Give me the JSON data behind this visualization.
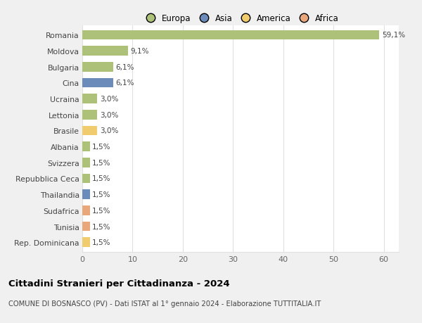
{
  "countries": [
    "Romania",
    "Moldova",
    "Bulgaria",
    "Cina",
    "Ucraina",
    "Lettonia",
    "Brasile",
    "Albania",
    "Svizzera",
    "Repubblica Ceca",
    "Thailandia",
    "Sudafrica",
    "Tunisia",
    "Rep. Dominicana"
  ],
  "values": [
    59.1,
    9.1,
    6.1,
    6.1,
    3.0,
    3.0,
    3.0,
    1.5,
    1.5,
    1.5,
    1.5,
    1.5,
    1.5,
    1.5
  ],
  "labels": [
    "59,1%",
    "9,1%",
    "6,1%",
    "6,1%",
    "3,0%",
    "3,0%",
    "3,0%",
    "1,5%",
    "1,5%",
    "1,5%",
    "1,5%",
    "1,5%",
    "1,5%",
    "1,5%"
  ],
  "colors": [
    "#adc178",
    "#adc178",
    "#adc178",
    "#6b8cba",
    "#adc178",
    "#adc178",
    "#f0cc6e",
    "#adc178",
    "#adc178",
    "#adc178",
    "#6b8cba",
    "#e8a87c",
    "#e8a87c",
    "#f0cc6e"
  ],
  "legend_labels": [
    "Europa",
    "Asia",
    "America",
    "Africa"
  ],
  "legend_colors": [
    "#adc178",
    "#6b8cba",
    "#f0cc6e",
    "#e8a87c"
  ],
  "title": "Cittadini Stranieri per Cittadinanza - 2024",
  "subtitle": "COMUNE DI BOSNASCO (PV) - Dati ISTAT al 1° gennaio 2024 - Elaborazione TUTTITALIA.IT",
  "xlim": [
    0,
    63
  ],
  "xticks": [
    0,
    10,
    20,
    30,
    40,
    50,
    60
  ],
  "bg_color": "#f0f0f0",
  "plot_bg_color": "#ffffff",
  "grid_color": "#e0e0e0"
}
